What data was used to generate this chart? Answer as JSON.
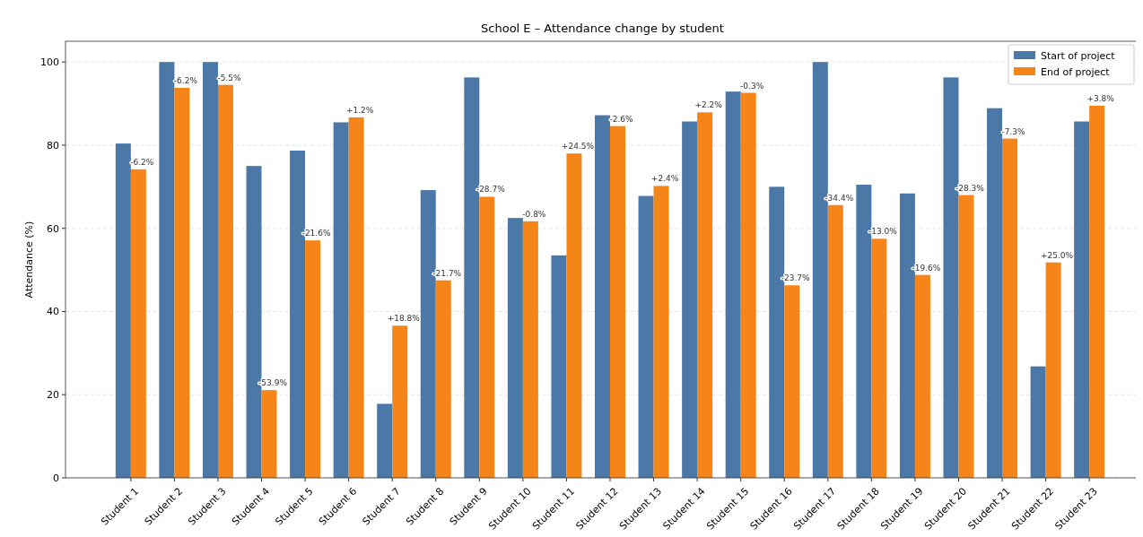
{
  "chart_data": {
    "type": "bar",
    "title": "School E – Attendance change by student",
    "ylabel": "Attendance (%)",
    "categories": [
      "Student 1",
      "Student 2",
      "Student 3",
      "Student 4",
      "Student 5",
      "Student 6",
      "Student 7",
      "Student 8",
      "Student 9",
      "Student 10",
      "Student 11",
      "Student 12",
      "Student 13",
      "Student 14",
      "Student 15",
      "Student 16",
      "Student 17",
      "Student 18",
      "Student 19",
      "Student 20",
      "Student 21",
      "Student 22",
      "Student 23"
    ],
    "series": [
      {
        "name": "Start of project",
        "color": "#4c78a8",
        "values": [
          80.4,
          100,
          100,
          75.0,
          78.7,
          85.5,
          17.8,
          69.2,
          96.3,
          62.5,
          53.5,
          87.2,
          67.8,
          85.7,
          92.9,
          70.0,
          100,
          70.5,
          68.4,
          96.3,
          88.9,
          26.8,
          85.7
        ]
      },
      {
        "name": "End of project",
        "color": "#f58518",
        "values": [
          74.2,
          93.8,
          94.5,
          21.1,
          57.1,
          86.7,
          36.6,
          47.5,
          67.6,
          61.7,
          78.0,
          84.6,
          70.2,
          87.9,
          92.6,
          46.3,
          65.6,
          57.5,
          48.8,
          68.0,
          81.6,
          51.8,
          89.5
        ]
      }
    ],
    "annotations": [
      {
        "text": "-6.2%",
        "x": "Student 1",
        "y": 74.2
      },
      {
        "text": "-6.2%",
        "x": "Student 2",
        "y": 93.8
      },
      {
        "text": "-5.5%",
        "x": "Student 3",
        "y": 94.5
      },
      {
        "text": "-53.9%",
        "x": "Student 4",
        "y": 21.1
      },
      {
        "text": "-21.6%",
        "x": "Student 5",
        "y": 57.1
      },
      {
        "text": "+1.2%",
        "x": "Student 6",
        "y": 86.7
      },
      {
        "text": "+18.8%",
        "x": "Student 7",
        "y": 36.6
      },
      {
        "text": "-21.7%",
        "x": "Student 8",
        "y": 47.5
      },
      {
        "text": "-28.7%",
        "x": "Student 9",
        "y": 67.6
      },
      {
        "text": "-0.8%",
        "x": "Student 10",
        "y": 61.7
      },
      {
        "text": "+24.5%",
        "x": "Student 11",
        "y": 78.0
      },
      {
        "text": "-2.6%",
        "x": "Student 12",
        "y": 84.6
      },
      {
        "text": "+2.4%",
        "x": "Student 13",
        "y": 70.2
      },
      {
        "text": "+2.2%",
        "x": "Student 14",
        "y": 87.9
      },
      {
        "text": "-0.3%",
        "x": "Student 15",
        "y": 92.6
      },
      {
        "text": "-23.7%",
        "x": "Student 16",
        "y": 46.3
      },
      {
        "text": "-34.4%",
        "x": "Student 17",
        "y": 65.6
      },
      {
        "text": "-13.0%",
        "x": "Student 18",
        "y": 57.5
      },
      {
        "text": "-19.6%",
        "x": "Student 19",
        "y": 48.8
      },
      {
        "text": "-28.3%",
        "x": "Student 20",
        "y": 68.0
      },
      {
        "text": "-7.3%",
        "x": "Student 21",
        "y": 81.6
      },
      {
        "text": "+25.0%",
        "x": "Student 22",
        "y": 51.8
      },
      {
        "text": "+3.8%",
        "x": "Student 23",
        "y": 89.5
      }
    ],
    "ylim": [
      0,
      105
    ],
    "yticks": [
      0,
      20,
      40,
      60,
      80,
      100
    ],
    "grid": "y",
    "legend": "top right"
  }
}
